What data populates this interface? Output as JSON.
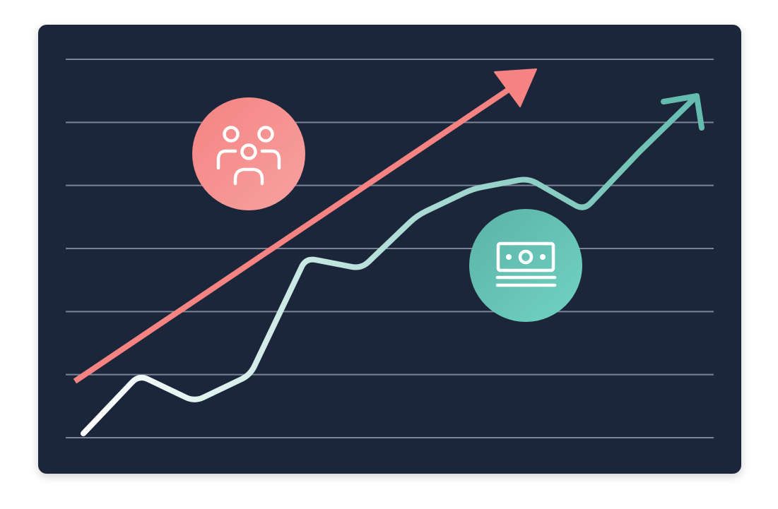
{
  "theme": {
    "panel": "#1b253b",
    "gridline": "#7c8596",
    "trend_arrow": "#f48382",
    "growth_line_start": "#ffffff",
    "growth_line_end": "#64bcaf",
    "people_badge": "#f48382",
    "money_badge": "#62bfb2",
    "icon_stroke": "#ffffff"
  },
  "icons": {
    "people": "people-group-icon",
    "money": "banknote-icon"
  },
  "chart_data": {
    "type": "line",
    "grid": true,
    "gridline_count": 7,
    "trend_arrow": {
      "x": [
        0,
        10
      ],
      "y": [
        0,
        10
      ]
    },
    "growth_line": {
      "x": [
        0,
        1,
        2,
        3,
        4,
        5,
        6,
        7,
        8,
        9,
        10
      ],
      "y": [
        0,
        1.1,
        0.6,
        1.1,
        3.3,
        3.1,
        4.1,
        4.6,
        4.8,
        4.2,
        5.3
      ]
    }
  }
}
